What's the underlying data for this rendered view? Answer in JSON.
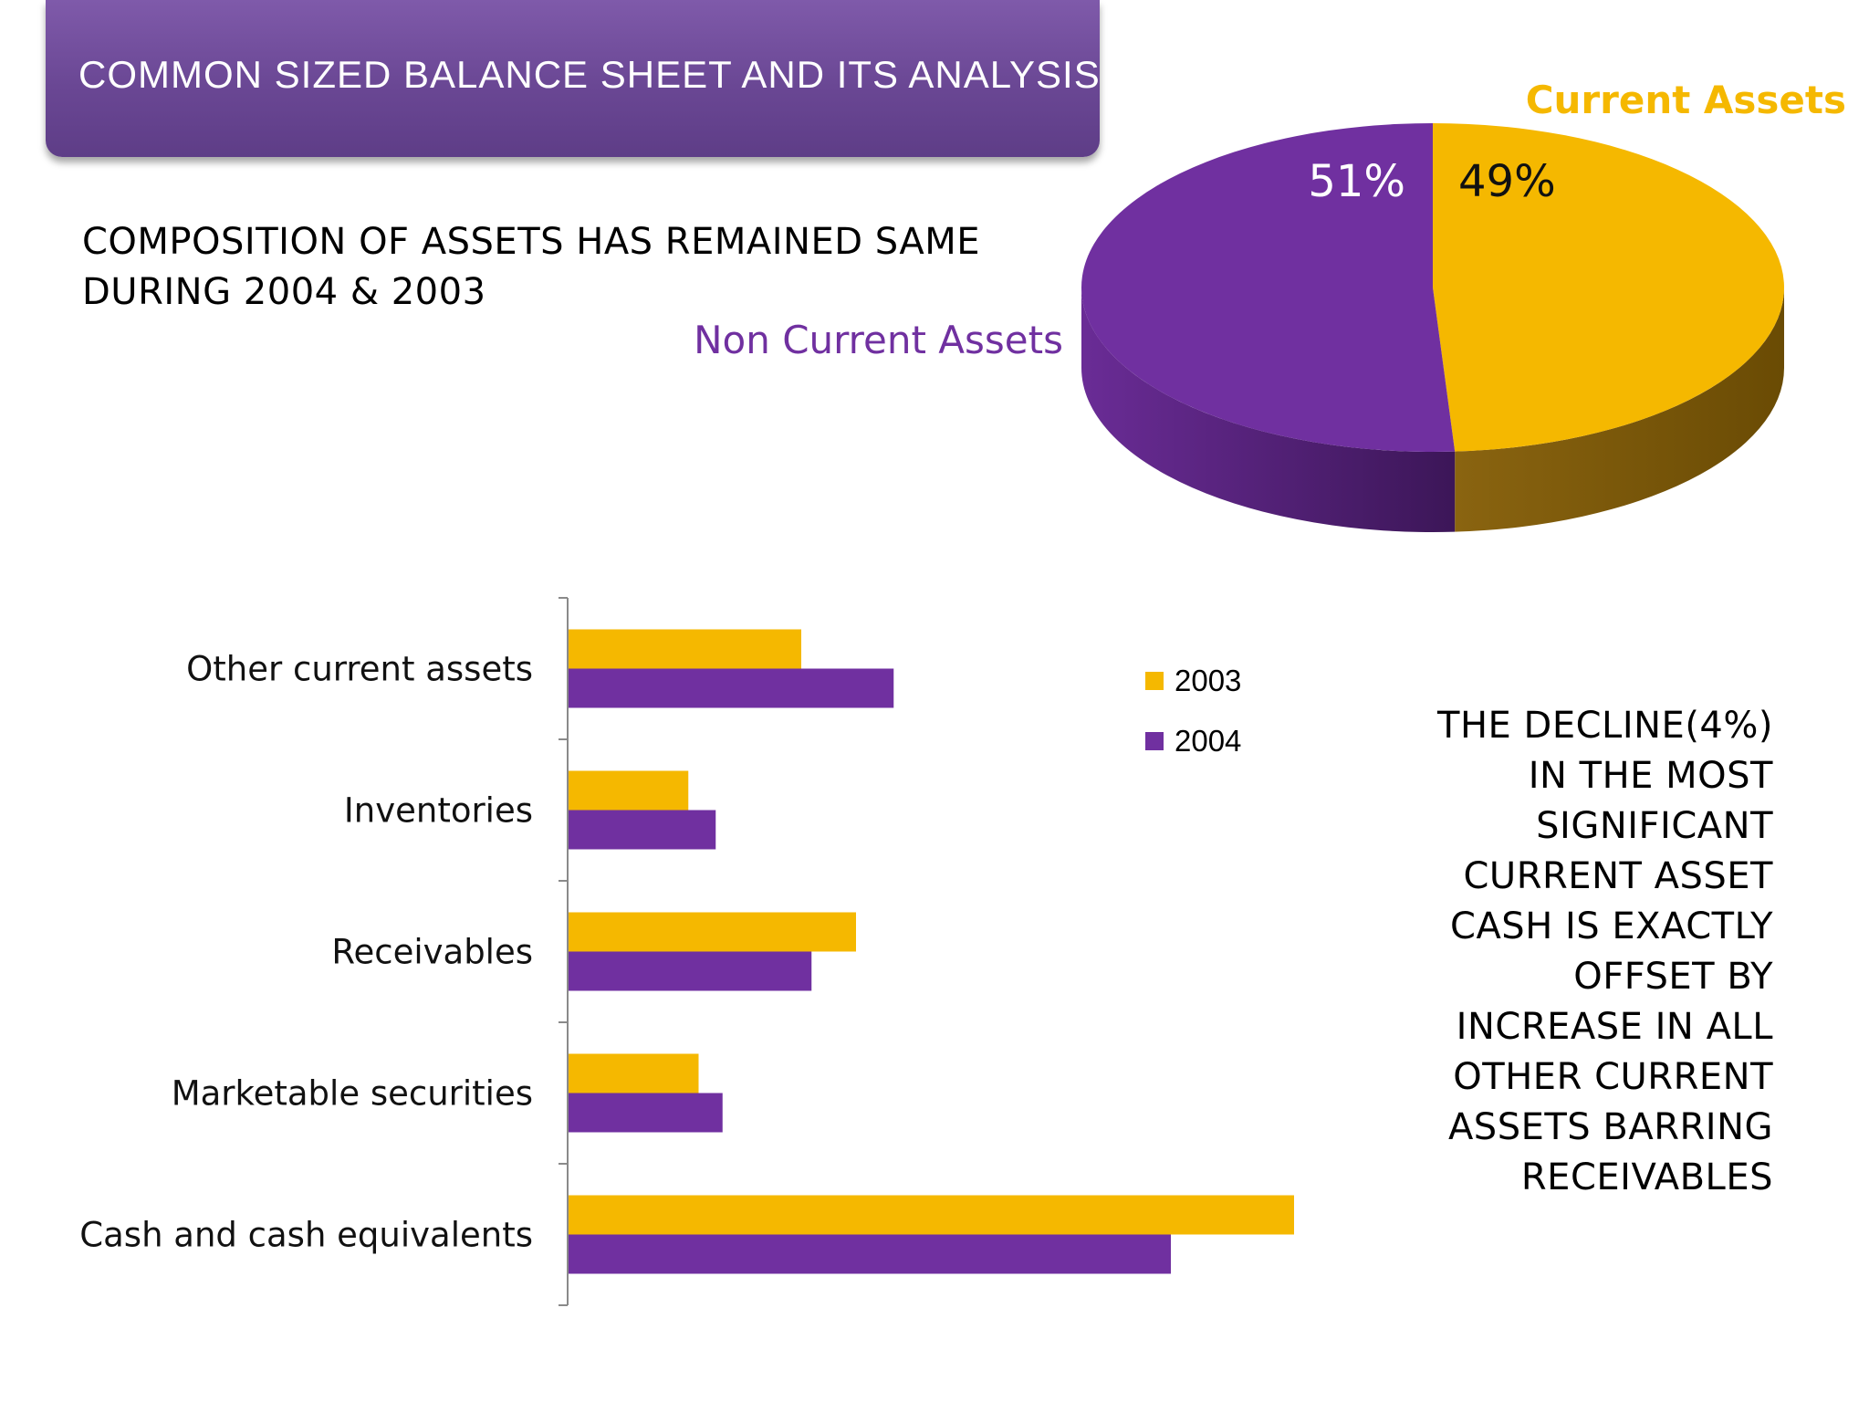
{
  "title": "COMMON SIZED BALANCE SHEET AND ITS ANALYSIS",
  "subtitle": "COMPOSITION OF ASSETS HAS REMAINED SAME\nDURING 2004 & 2003",
  "note": "THE DECLINE(4%)\nIN THE MOST\nSIGNIFICANT\nCURRENT ASSET\nCASH IS EXACTLY\nOFFSET BY\nINCREASE IN ALL\nOTHER CURRENT\nASSETS BARRING\nRECEIVABLES",
  "colors": {
    "banner": "#6a4794",
    "purple": "#7030a0",
    "gold": "#f5b800"
  },
  "chart_data": [
    {
      "type": "pie",
      "title": "",
      "labels": [
        "Non Current Assets",
        "Current Assets"
      ],
      "values": [
        51,
        49
      ],
      "value_labels": [
        "51%",
        "49%"
      ],
      "colors": [
        "#7030a0",
        "#f5b800"
      ]
    },
    {
      "type": "bar",
      "orientation": "horizontal",
      "title": "",
      "categories": [
        "Other current assets",
        "Inventories",
        "Receivables",
        "Marketable securities",
        "Cash and cash equivalents"
      ],
      "series": [
        {
          "name": "2003",
          "color": "#f5b800",
          "values": [
            6.8,
            3.5,
            8.4,
            3.8,
            21.2
          ]
        },
        {
          "name": "2004",
          "color": "#7030a0",
          "values": [
            9.5,
            4.3,
            7.1,
            4.5,
            17.6
          ]
        }
      ],
      "xlim": [
        0,
        40
      ],
      "legend": "right"
    }
  ]
}
